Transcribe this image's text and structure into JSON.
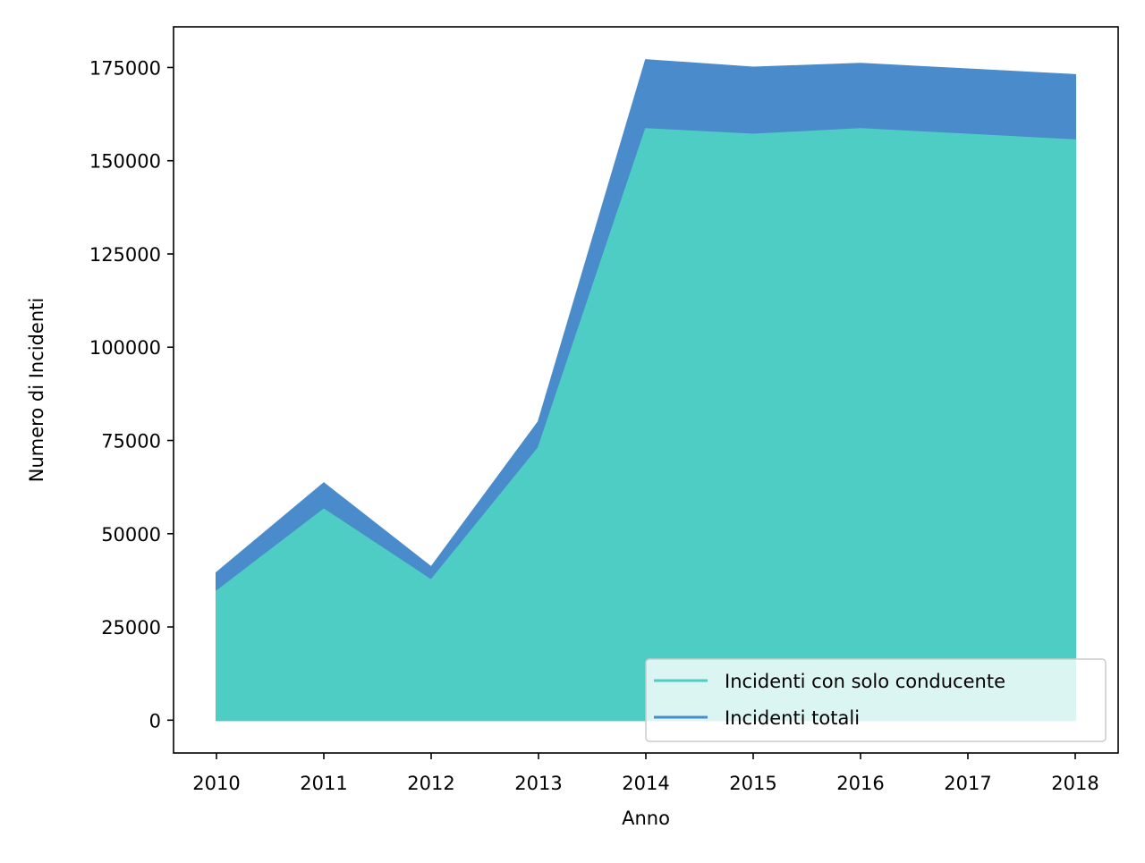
{
  "chart_data": {
    "type": "area",
    "title": "",
    "xlabel": "Anno",
    "ylabel": "Numero di Incidenti",
    "x": [
      2010,
      2011,
      2012,
      2013,
      2014,
      2015,
      2016,
      2017,
      2018
    ],
    "series": [
      {
        "name": "Incidenti con solo conducente",
        "color": "#4ECDC4",
        "values": [
          34500,
          56500,
          37500,
          73000,
          158500,
          157000,
          158500,
          157000,
          155500
        ]
      },
      {
        "name": "Incidenti totali",
        "color": "#4A8CCB",
        "values": [
          39500,
          63500,
          41000,
          80000,
          177000,
          175000,
          176000,
          174500,
          173000
        ]
      }
    ],
    "xlim": [
      2009.6,
      2018.4
    ],
    "ylim": [
      -8800,
      185900
    ],
    "xticks": [
      "2010",
      "2011",
      "2012",
      "2013",
      "2014",
      "2015",
      "2016",
      "2017",
      "2018"
    ],
    "yticks": [
      "0",
      "25000",
      "50000",
      "75000",
      "100000",
      "125000",
      "150000",
      "175000"
    ],
    "ytick_values": [
      0,
      25000,
      50000,
      75000,
      100000,
      125000,
      150000,
      175000
    ],
    "grid": false,
    "legend_position": "lower-right"
  }
}
